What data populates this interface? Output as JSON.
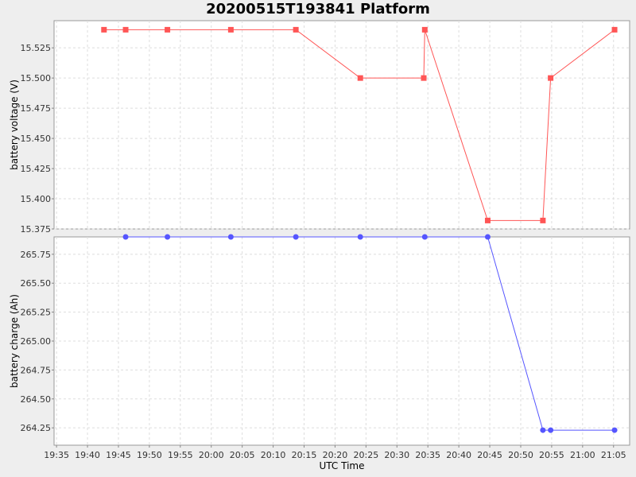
{
  "chart_data": {
    "title": "20200515T193841 Platform",
    "type": "line",
    "xlabel": "UTC Time",
    "x_ticks": [
      "19:35",
      "19:40",
      "19:45",
      "19:50",
      "19:55",
      "20:00",
      "20:05",
      "20:10",
      "20:15",
      "20:20",
      "20:25",
      "20:30",
      "20:35",
      "20:40",
      "20:45",
      "20:50",
      "20:55",
      "21:00",
      "21:05"
    ],
    "grid": true,
    "panels": [
      {
        "ylabel": "battery voltage (V)",
        "ylim": [
          15.375,
          15.5475
        ],
        "y_ticks": [
          "15.375",
          "15.400",
          "15.425",
          "15.450",
          "15.475",
          "15.500",
          "15.525"
        ],
        "series": [
          {
            "color": "#ff5555",
            "marker": "square",
            "x": [
              "19:42:40",
              "19:46:10",
              "19:52:55",
              "20:03:10",
              "20:13:40",
              "20:24:05",
              "20:34:20",
              "20:34:30",
              "20:44:40",
              "20:53:35",
              "20:54:50",
              "21:05:10"
            ],
            "y": [
              15.54,
              15.54,
              15.54,
              15.54,
              15.54,
              15.5,
              15.5,
              15.54,
              15.382,
              15.382,
              15.5,
              15.54
            ]
          }
        ]
      },
      {
        "ylabel": "battery charge (Ah)",
        "ylim": [
          264.1,
          265.9
        ],
        "y_ticks": [
          "264.25",
          "264.50",
          "264.75",
          "265.00",
          "265.25",
          "265.50",
          "265.75"
        ],
        "series": [
          {
            "color": "#5555ff",
            "marker": "circle",
            "x": [
              "19:46:10",
              "19:52:55",
              "20:03:10",
              "20:13:40",
              "20:24:05",
              "20:34:30",
              "20:44:40",
              "20:53:35",
              "20:54:50",
              "21:05:10"
            ],
            "y": [
              265.9,
              265.9,
              265.9,
              265.9,
              265.9,
              265.9,
              265.9,
              264.23,
              264.23,
              264.23
            ]
          }
        ]
      }
    ]
  }
}
